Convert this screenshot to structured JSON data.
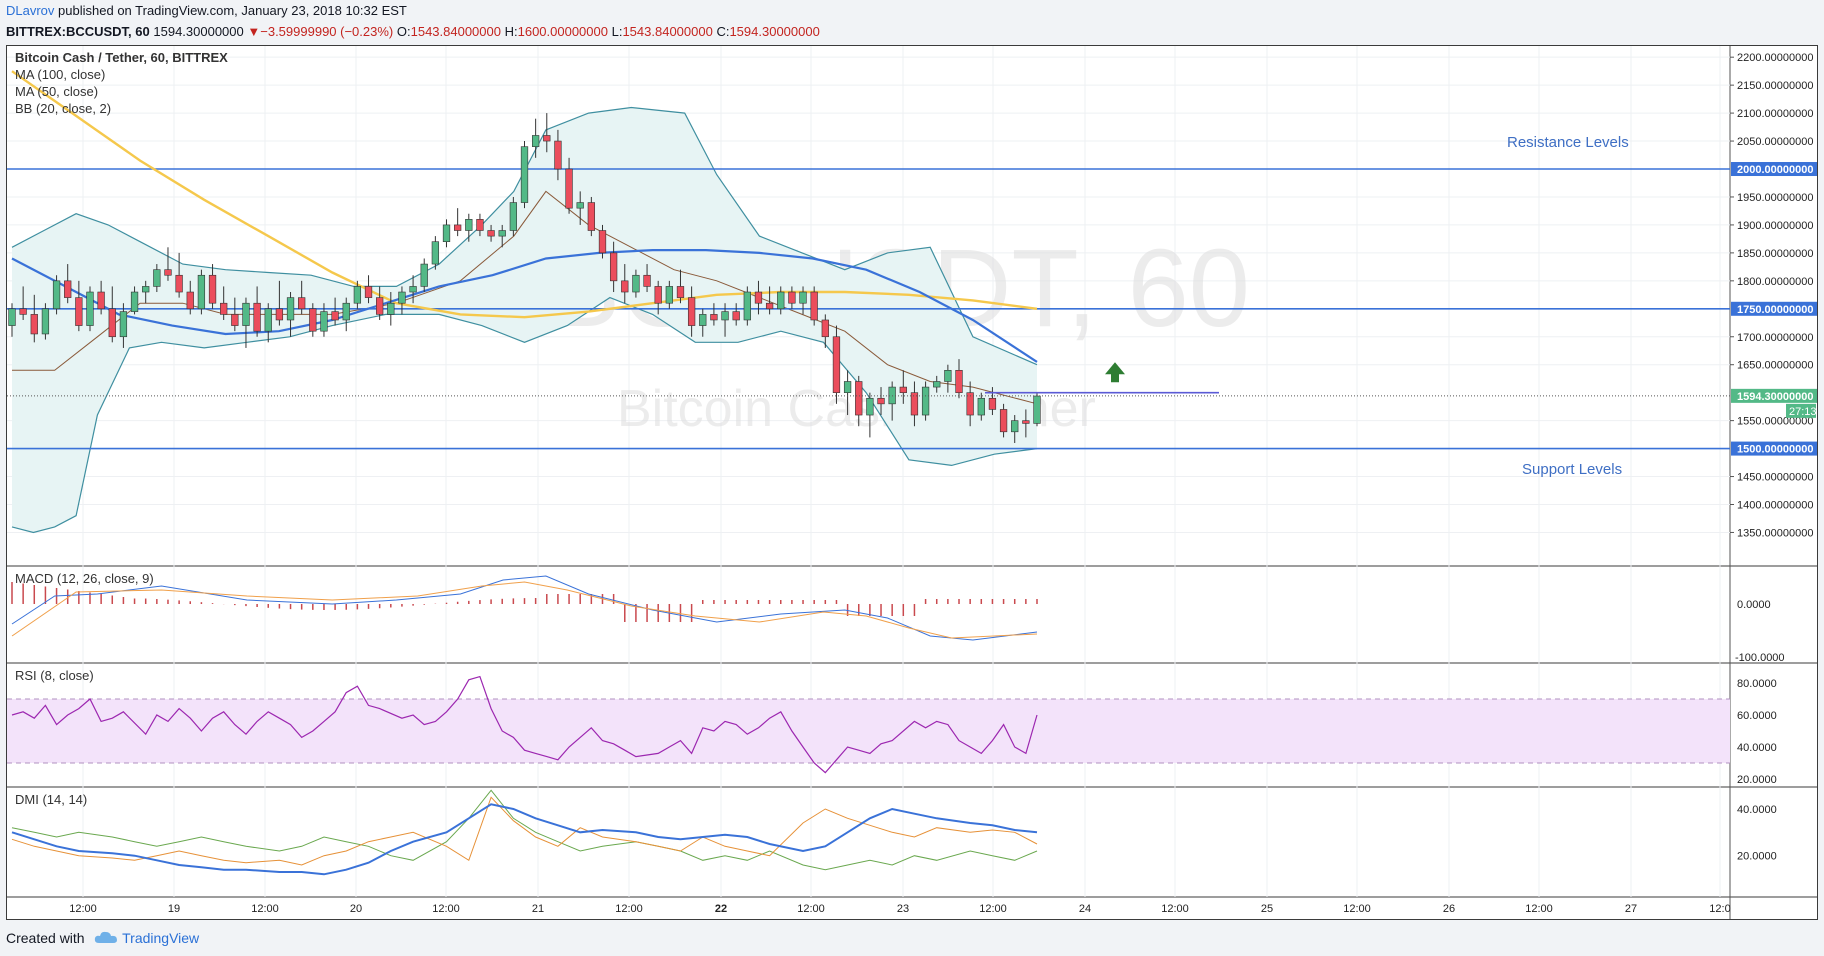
{
  "header": {
    "author": "DLavrov",
    "published_text": "published on TradingView.com, January 23, 2018 10:32 EST",
    "symbol": "BITTREX:BCCUSDT, 60",
    "last_price": "1594.30000000",
    "change": "−3.59999990 (−0.23%)",
    "o_label": "O:",
    "o_value": "1543.84000000",
    "h_label": "H:",
    "h_value": "1600.00000000",
    "l_label": "L:",
    "l_value": "1543.84000000",
    "c_label": "C:",
    "c_value": "1594.30000000"
  },
  "footer": {
    "created_with": "Created with",
    "brand": "TradingView"
  },
  "colors": {
    "up": "#53b987",
    "down": "#eb4d5c",
    "hline": "#3a72d8",
    "ma100": "#f5c84c",
    "ma50": "#3a72d8",
    "bb": "#3f8fa0",
    "bb_fill": "#e7f4f4",
    "rsi_fill": "#f3e3fa",
    "rsi": "#9c27b0"
  },
  "chart_data": {
    "type": "candlestick",
    "title": "Bitcoin Cash / Tether, 60, BITTREX",
    "watermark": "BCCUSDT, 60",
    "watermark_sub": "Bitcoin Cash / Tether",
    "legends": [
      "Bitcoin Cash / Tether, 60, BITTREX",
      "MA (100, close)",
      "MA (50, close)",
      "BB (20, close, 2)"
    ],
    "x_ticks": [
      "12:00",
      "19",
      "12:00",
      "20",
      "12:00",
      "21",
      "12:00",
      "22",
      "12:00",
      "23",
      "12:00",
      "24",
      "12:00",
      "25",
      "12:00",
      "26",
      "12:00",
      "27",
      "12:0"
    ],
    "price_axis": {
      "ylim": [
        1290,
        2220
      ],
      "ticks": [
        "2200.00000000",
        "2150.00000000",
        "2100.00000000",
        "2050.00000000",
        "1950.00000000",
        "1900.00000000",
        "1850.00000000",
        "1800.00000000",
        "1700.00000000",
        "1650.00000000",
        "1550.00000000",
        "1450.00000000",
        "1400.00000000",
        "1350.00000000"
      ],
      "tick_values": [
        2200,
        2150,
        2100,
        2050,
        1950,
        1900,
        1850,
        1800,
        1700,
        1650,
        1550,
        1450,
        1400,
        1350
      ]
    },
    "horizontal_levels": [
      {
        "value": 2000,
        "label": "2000.00000000"
      },
      {
        "value": 1750,
        "label": "1750.00000000"
      },
      {
        "value": 1500,
        "label": "1500.00000000"
      }
    ],
    "current_price": {
      "value": 1594.3,
      "label": "1594.30000000",
      "countdown": "27:13"
    },
    "annotations": [
      {
        "text": "Resistance Levels",
        "price": 2050
      },
      {
        "text": "Support Levels",
        "price": 1465
      }
    ],
    "candles": [
      [
        1720,
        1760,
        1700,
        1750
      ],
      [
        1750,
        1790,
        1730,
        1740
      ],
      [
        1740,
        1775,
        1690,
        1705
      ],
      [
        1705,
        1760,
        1695,
        1750
      ],
      [
        1750,
        1810,
        1740,
        1800
      ],
      [
        1800,
        1830,
        1760,
        1770
      ],
      [
        1770,
        1800,
        1710,
        1720
      ],
      [
        1720,
        1790,
        1710,
        1780
      ],
      [
        1780,
        1800,
        1740,
        1750
      ],
      [
        1750,
        1790,
        1690,
        1700
      ],
      [
        1700,
        1760,
        1680,
        1745
      ],
      [
        1745,
        1790,
        1740,
        1780
      ],
      [
        1780,
        1800,
        1760,
        1790
      ],
      [
        1790,
        1830,
        1780,
        1820
      ],
      [
        1820,
        1860,
        1800,
        1810
      ],
      [
        1810,
        1850,
        1770,
        1780
      ],
      [
        1780,
        1800,
        1740,
        1750
      ],
      [
        1750,
        1820,
        1740,
        1810
      ],
      [
        1810,
        1830,
        1750,
        1760
      ],
      [
        1760,
        1790,
        1730,
        1740
      ],
      [
        1740,
        1770,
        1710,
        1720
      ],
      [
        1720,
        1770,
        1680,
        1760
      ],
      [
        1760,
        1790,
        1700,
        1710
      ],
      [
        1710,
        1760,
        1690,
        1750
      ],
      [
        1750,
        1800,
        1720,
        1730
      ],
      [
        1730,
        1780,
        1700,
        1770
      ],
      [
        1770,
        1800,
        1740,
        1750
      ],
      [
        1750,
        1760,
        1700,
        1710
      ],
      [
        1710,
        1760,
        1700,
        1745
      ],
      [
        1745,
        1770,
        1720,
        1730
      ],
      [
        1730,
        1770,
        1710,
        1760
      ],
      [
        1760,
        1800,
        1750,
        1790
      ],
      [
        1790,
        1810,
        1760,
        1770
      ],
      [
        1770,
        1790,
        1730,
        1740
      ],
      [
        1740,
        1780,
        1720,
        1760
      ],
      [
        1760,
        1790,
        1740,
        1780
      ],
      [
        1780,
        1810,
        1760,
        1790
      ],
      [
        1790,
        1840,
        1780,
        1830
      ],
      [
        1830,
        1880,
        1820,
        1870
      ],
      [
        1870,
        1910,
        1860,
        1900
      ],
      [
        1900,
        1930,
        1880,
        1890
      ],
      [
        1890,
        1920,
        1870,
        1910
      ],
      [
        1910,
        1920,
        1880,
        1890
      ],
      [
        1890,
        1900,
        1870,
        1880
      ],
      [
        1880,
        1900,
        1860,
        1890
      ],
      [
        1890,
        1950,
        1880,
        1940
      ],
      [
        1940,
        2050,
        1930,
        2040
      ],
      [
        2040,
        2090,
        2020,
        2060
      ],
      [
        2060,
        2100,
        2030,
        2050
      ],
      [
        2050,
        2070,
        1980,
        2000
      ],
      [
        2000,
        2020,
        1920,
        1930
      ],
      [
        1930,
        1960,
        1900,
        1940
      ],
      [
        1940,
        1950,
        1880,
        1890
      ],
      [
        1890,
        1900,
        1840,
        1850
      ],
      [
        1850,
        1870,
        1780,
        1800
      ],
      [
        1800,
        1830,
        1760,
        1780
      ],
      [
        1780,
        1820,
        1770,
        1810
      ],
      [
        1810,
        1830,
        1780,
        1790
      ],
      [
        1790,
        1800,
        1740,
        1760
      ],
      [
        1760,
        1800,
        1750,
        1790
      ],
      [
        1790,
        1820,
        1760,
        1770
      ],
      [
        1770,
        1790,
        1700,
        1720
      ],
      [
        1720,
        1750,
        1700,
        1740
      ],
      [
        1740,
        1760,
        1720,
        1730
      ],
      [
        1730,
        1760,
        1700,
        1745
      ],
      [
        1745,
        1760,
        1720,
        1730
      ],
      [
        1730,
        1790,
        1720,
        1780
      ],
      [
        1780,
        1800,
        1740,
        1760
      ],
      [
        1760,
        1790,
        1740,
        1750
      ],
      [
        1750,
        1790,
        1740,
        1780
      ],
      [
        1780,
        1790,
        1750,
        1760
      ],
      [
        1760,
        1790,
        1740,
        1780
      ],
      [
        1780,
        1790,
        1720,
        1730
      ],
      [
        1730,
        1740,
        1680,
        1700
      ],
      [
        1700,
        1720,
        1580,
        1600
      ],
      [
        1600,
        1640,
        1560,
        1620
      ],
      [
        1620,
        1630,
        1540,
        1560
      ],
      [
        1560,
        1600,
        1520,
        1590
      ],
      [
        1590,
        1610,
        1560,
        1580
      ],
      [
        1580,
        1620,
        1550,
        1610
      ],
      [
        1610,
        1640,
        1580,
        1600
      ],
      [
        1600,
        1620,
        1540,
        1560
      ],
      [
        1560,
        1620,
        1550,
        1610
      ],
      [
        1610,
        1630,
        1600,
        1620
      ],
      [
        1620,
        1650,
        1600,
        1640
      ],
      [
        1640,
        1660,
        1590,
        1600
      ],
      [
        1600,
        1620,
        1540,
        1560
      ],
      [
        1560,
        1600,
        1550,
        1590
      ],
      [
        1590,
        1610,
        1560,
        1570
      ],
      [
        1570,
        1580,
        1520,
        1530
      ],
      [
        1530,
        1560,
        1510,
        1550
      ],
      [
        1550,
        1570,
        1520,
        1545
      ],
      [
        1545,
        1600,
        1540,
        1594
      ]
    ],
    "ma100": [
      [
        0,
        2175
      ],
      [
        60,
        2095
      ],
      [
        120,
        2015
      ],
      [
        180,
        1945
      ],
      [
        240,
        1880
      ],
      [
        300,
        1815
      ],
      [
        360,
        1760
      ],
      [
        420,
        1740
      ],
      [
        480,
        1735
      ],
      [
        540,
        1745
      ],
      [
        600,
        1760
      ],
      [
        660,
        1775
      ],
      [
        720,
        1780
      ],
      [
        780,
        1780
      ],
      [
        840,
        1775
      ],
      [
        900,
        1765
      ],
      [
        960,
        1750
      ]
    ],
    "ma50": [
      [
        0,
        1840
      ],
      [
        50,
        1790
      ],
      [
        100,
        1740
      ],
      [
        150,
        1720
      ],
      [
        200,
        1705
      ],
      [
        250,
        1710
      ],
      [
        300,
        1730
      ],
      [
        350,
        1760
      ],
      [
        400,
        1790
      ],
      [
        450,
        1810
      ],
      [
        500,
        1840
      ],
      [
        550,
        1850
      ],
      [
        600,
        1855
      ],
      [
        650,
        1855
      ],
      [
        700,
        1850
      ],
      [
        750,
        1840
      ],
      [
        800,
        1820
      ],
      [
        850,
        1780
      ],
      [
        900,
        1730
      ],
      [
        960,
        1655
      ]
    ],
    "bb_upper": [
      [
        0,
        1860
      ],
      [
        30,
        1890
      ],
      [
        60,
        1920
      ],
      [
        90,
        1900
      ],
      [
        120,
        1870
      ],
      [
        160,
        1830
      ],
      [
        200,
        1820
      ],
      [
        240,
        1815
      ],
      [
        280,
        1810
      ],
      [
        320,
        1790
      ],
      [
        360,
        1790
      ],
      [
        400,
        1830
      ],
      [
        440,
        1900
      ],
      [
        470,
        1960
      ],
      [
        500,
        2070
      ],
      [
        540,
        2100
      ],
      [
        580,
        2110
      ],
      [
        630,
        2100
      ],
      [
        660,
        1990
      ],
      [
        700,
        1880
      ],
      [
        740,
        1850
      ],
      [
        780,
        1820
      ],
      [
        820,
        1850
      ],
      [
        860,
        1860
      ],
      [
        900,
        1700
      ],
      [
        960,
        1650
      ]
    ],
    "bb_lower": [
      [
        0,
        1360
      ],
      [
        20,
        1350
      ],
      [
        40,
        1360
      ],
      [
        60,
        1380
      ],
      [
        80,
        1560
      ],
      [
        110,
        1680
      ],
      [
        140,
        1690
      ],
      [
        180,
        1680
      ],
      [
        220,
        1690
      ],
      [
        260,
        1700
      ],
      [
        300,
        1720
      ],
      [
        350,
        1740
      ],
      [
        400,
        1740
      ],
      [
        440,
        1720
      ],
      [
        480,
        1690
      ],
      [
        520,
        1720
      ],
      [
        560,
        1770
      ],
      [
        600,
        1740
      ],
      [
        640,
        1690
      ],
      [
        680,
        1690
      ],
      [
        720,
        1710
      ],
      [
        760,
        1690
      ],
      [
        800,
        1600
      ],
      [
        840,
        1480
      ],
      [
        880,
        1470
      ],
      [
        920,
        1490
      ],
      [
        960,
        1500
      ]
    ],
    "bb_mid": [
      [
        0,
        1640
      ],
      [
        40,
        1640
      ],
      [
        80,
        1700
      ],
      [
        120,
        1760
      ],
      [
        160,
        1760
      ],
      [
        200,
        1740
      ],
      [
        240,
        1740
      ],
      [
        300,
        1740
      ],
      [
        360,
        1760
      ],
      [
        420,
        1800
      ],
      [
        470,
        1880
      ],
      [
        500,
        1960
      ],
      [
        540,
        1900
      ],
      [
        580,
        1860
      ],
      [
        620,
        1820
      ],
      [
        660,
        1800
      ],
      [
        700,
        1770
      ],
      [
        740,
        1740
      ],
      [
        780,
        1710
      ],
      [
        820,
        1650
      ],
      [
        860,
        1620
      ],
      [
        900,
        1610
      ],
      [
        960,
        1580
      ]
    ]
  },
  "indicators": {
    "macd": {
      "label": "MACD (12, 26, close, 9)",
      "ticks": [
        "0.0000",
        "-100.0000"
      ]
    },
    "rsi": {
      "label": "RSI (8, close)",
      "ticks": [
        "80.0000",
        "60.0000",
        "40.0000",
        "20.0000"
      ]
    },
    "dmi": {
      "label": "DMI (14, 14)",
      "ticks": [
        "40.0000",
        "20.0000"
      ]
    }
  }
}
